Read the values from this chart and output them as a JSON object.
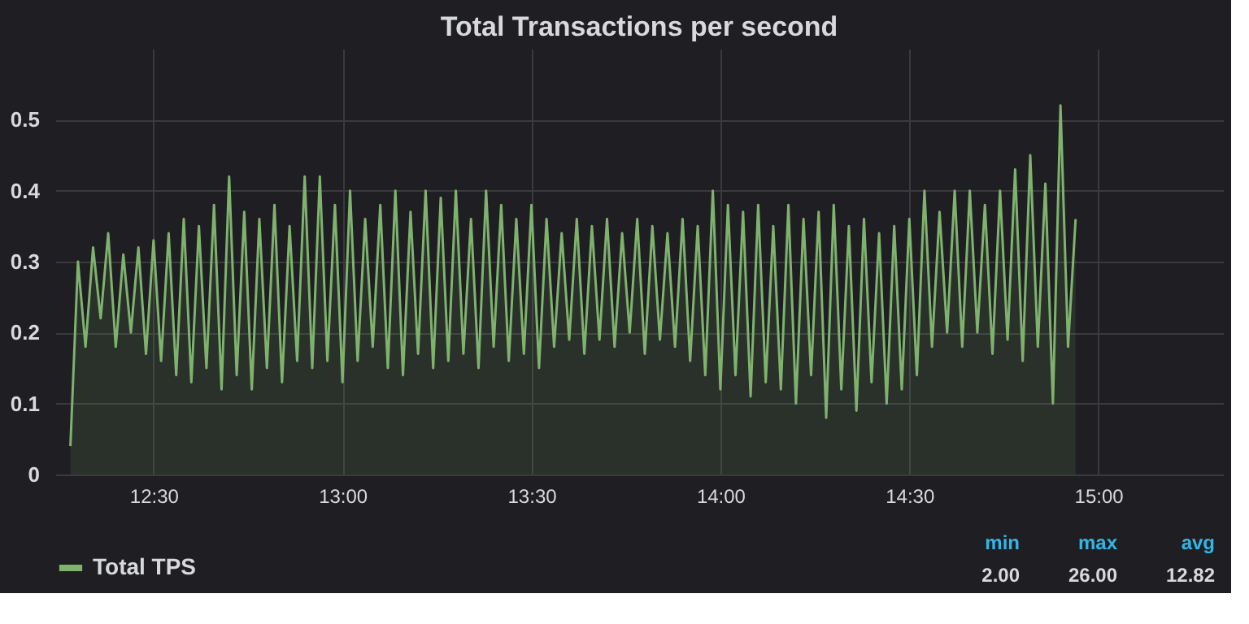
{
  "chart_data": {
    "type": "area",
    "title": "Total Transactions per second",
    "x": [
      12.28,
      12.3,
      12.32,
      12.34,
      12.36,
      12.38,
      12.4,
      12.42,
      12.44,
      12.46,
      12.48,
      12.5,
      12.52,
      12.54,
      12.56,
      12.58,
      12.6,
      12.62,
      12.64,
      12.66,
      12.68,
      12.7,
      12.72,
      12.74,
      12.76,
      12.78,
      12.8,
      12.82,
      12.84,
      12.86,
      12.88,
      12.9,
      12.92,
      12.94,
      12.96,
      12.98,
      13.0,
      13.02,
      13.04,
      13.06,
      13.08,
      13.1,
      13.12,
      13.14,
      13.16,
      13.18,
      13.2,
      13.22,
      13.24,
      13.26,
      13.28,
      13.3,
      13.32,
      13.34,
      13.36,
      13.38,
      13.4,
      13.42,
      13.44,
      13.46,
      13.48,
      13.5,
      13.52,
      13.54,
      13.56,
      13.58,
      13.6,
      13.62,
      13.64,
      13.66,
      13.68,
      13.7,
      13.72,
      13.74,
      13.76,
      13.78,
      13.8,
      13.82,
      13.84,
      13.86,
      13.88,
      13.9,
      13.92,
      13.94,
      13.96,
      13.98,
      14.0,
      14.02,
      14.04,
      14.06,
      14.08,
      14.1,
      14.12,
      14.14,
      14.16,
      14.18,
      14.2,
      14.22,
      14.24,
      14.26,
      14.28,
      14.3,
      14.32,
      14.34,
      14.36,
      14.38,
      14.4,
      14.42,
      14.44,
      14.46,
      14.48,
      14.5,
      14.52,
      14.54,
      14.56,
      14.58,
      14.6,
      14.62,
      14.64,
      14.66,
      14.68,
      14.7,
      14.72,
      14.74,
      14.76,
      14.78,
      14.8,
      14.82,
      14.84,
      14.86,
      14.88,
      14.9,
      14.92,
      14.94
    ],
    "series": [
      {
        "name": "Total TPS",
        "color": "#7eb26d",
        "values": [
          0.04,
          0.3,
          0.18,
          0.32,
          0.22,
          0.34,
          0.18,
          0.31,
          0.2,
          0.32,
          0.17,
          0.33,
          0.16,
          0.34,
          0.14,
          0.36,
          0.13,
          0.35,
          0.15,
          0.38,
          0.12,
          0.42,
          0.14,
          0.37,
          0.12,
          0.36,
          0.15,
          0.38,
          0.13,
          0.35,
          0.16,
          0.42,
          0.15,
          0.42,
          0.16,
          0.38,
          0.13,
          0.4,
          0.16,
          0.36,
          0.18,
          0.38,
          0.15,
          0.4,
          0.14,
          0.37,
          0.17,
          0.4,
          0.15,
          0.39,
          0.16,
          0.4,
          0.17,
          0.36,
          0.15,
          0.4,
          0.18,
          0.38,
          0.16,
          0.36,
          0.17,
          0.38,
          0.15,
          0.36,
          0.18,
          0.34,
          0.19,
          0.36,
          0.17,
          0.35,
          0.19,
          0.36,
          0.18,
          0.34,
          0.2,
          0.36,
          0.17,
          0.35,
          0.19,
          0.34,
          0.18,
          0.36,
          0.16,
          0.35,
          0.14,
          0.4,
          0.12,
          0.38,
          0.14,
          0.37,
          0.11,
          0.38,
          0.13,
          0.35,
          0.12,
          0.38,
          0.1,
          0.36,
          0.14,
          0.37,
          0.08,
          0.38,
          0.12,
          0.35,
          0.09,
          0.36,
          0.13,
          0.34,
          0.1,
          0.35,
          0.12,
          0.36,
          0.14,
          0.4,
          0.18,
          0.37,
          0.2,
          0.4,
          0.18,
          0.4,
          0.2,
          0.38,
          0.17,
          0.4,
          0.19,
          0.43,
          0.16,
          0.45,
          0.18,
          0.41,
          0.1,
          0.52,
          0.18,
          0.36
        ]
      }
    ],
    "xlim": [
      12.24,
      15.33
    ],
    "xticks": [
      {
        "value": 12.5,
        "label": "12:30"
      },
      {
        "value": 13,
        "label": "13:00"
      },
      {
        "value": 13.5,
        "label": "13:30"
      },
      {
        "value": 14,
        "label": "14:00"
      },
      {
        "value": 14.5,
        "label": "14:30"
      },
      {
        "value": 15,
        "label": "15:00"
      }
    ],
    "ylim": [
      0,
      0.6
    ],
    "yticks": [
      0,
      0.1,
      0.2,
      0.3,
      0.4,
      0.5
    ],
    "grid": true,
    "legend": "bottom left",
    "annotations": [
      "min",
      "max",
      "avg",
      "2.00",
      "26.00",
      "12.82"
    ]
  }
}
